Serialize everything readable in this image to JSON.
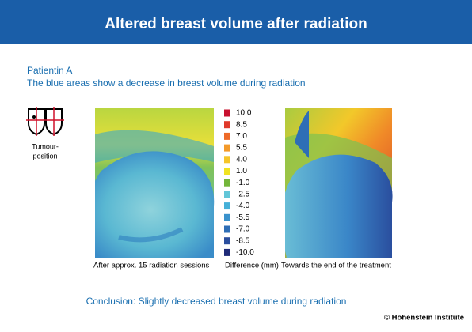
{
  "header": {
    "title": "Altered breast volume after radiation"
  },
  "patient": "Patientin A",
  "description": "The blue areas show a decrease in breast volume during radiation",
  "icon_label": [
    "Tumour-",
    "position"
  ],
  "legend": {
    "title": "Difference (mm)",
    "items": [
      {
        "label": "10.0",
        "color": "#c8102e"
      },
      {
        "label": "8.5",
        "color": "#e0392a"
      },
      {
        "label": "7.0",
        "color": "#ee6a28"
      },
      {
        "label": "5.5",
        "color": "#f39a2a"
      },
      {
        "label": "4.0",
        "color": "#f5c52a"
      },
      {
        "label": "1.0",
        "color": "#f0e322"
      },
      {
        "label": "-1.0",
        "color": "#74b63a"
      },
      {
        "label": "-2.5",
        "color": "#62c6d8"
      },
      {
        "label": "-4.0",
        "color": "#45b0d8"
      },
      {
        "label": "-5.5",
        "color": "#3a92cc"
      },
      {
        "label": "-7.0",
        "color": "#2e6eb6"
      },
      {
        "label": "-8.5",
        "color": "#2a4e9e"
      },
      {
        "label": "-10.0",
        "color": "#1e2a78"
      }
    ]
  },
  "captions": [
    "After approx. 15 radiation sessions",
    "Towards the end of the treatment"
  ],
  "conclusion": "Conclusion: Slightly decreased breast volume during radiation",
  "credit": "© Hohenstein Institute"
}
